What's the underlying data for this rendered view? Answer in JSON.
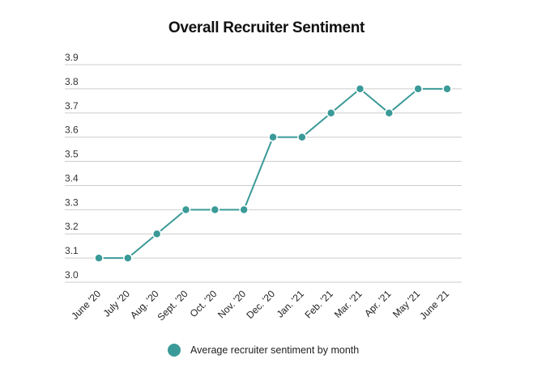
{
  "chart_data": {
    "type": "line",
    "title": "Overall Recruiter Sentiment",
    "xlabel": "",
    "ylabel": "",
    "categories": [
      "June '20",
      "July '20",
      "Aug. '20",
      "Sept. '20",
      "Oct. '20",
      "Nov. '20",
      "Dec. '20",
      "Jan. '21",
      "Feb. '21",
      "Mar. '21",
      "Apr. '21",
      "May '21",
      "June '21"
    ],
    "series": [
      {
        "name": "Average recruiter sentiment by month",
        "values": [
          3.1,
          3.1,
          3.2,
          3.3,
          3.3,
          3.3,
          3.6,
          3.6,
          3.7,
          3.8,
          3.7,
          3.8,
          3.8
        ],
        "color": "#3a9a98"
      }
    ],
    "ylim": [
      3.0,
      3.9
    ],
    "yticks": [
      "3.0",
      "3.1",
      "3.2",
      "3.3",
      "3.4",
      "3.5",
      "3.6",
      "3.7",
      "3.8",
      "3.9"
    ],
    "grid": true,
    "legend": "bottom-center"
  }
}
